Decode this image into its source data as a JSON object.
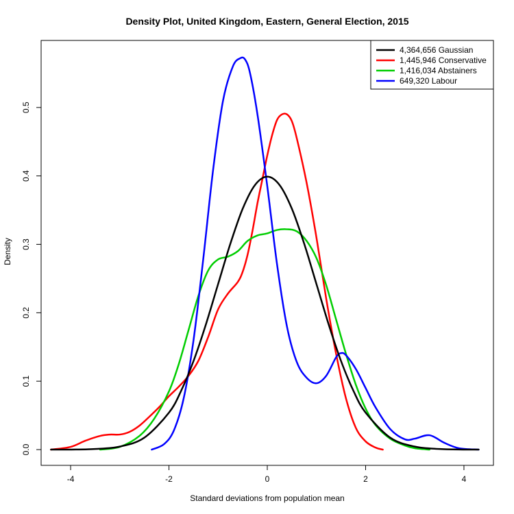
{
  "chart_data": {
    "type": "line",
    "title": "Density Plot, United Kingdom, Eastern, General Election, 2015",
    "xlabel": "Standard deviations from population mean",
    "ylabel": "Density",
    "xlim": [
      -4.6,
      4.6
    ],
    "ylim": [
      -0.023,
      0.598
    ],
    "xticks": [
      -4,
      -2,
      0,
      2,
      4
    ],
    "xtick_labels": [
      "-4",
      "-2",
      "0",
      "2",
      "4"
    ],
    "yticks": [
      0.0,
      0.1,
      0.2,
      0.3,
      0.4,
      0.5
    ],
    "ytick_labels": [
      "0.0",
      "0.1",
      "0.2",
      "0.3",
      "0.4",
      "0.5"
    ],
    "grid": false,
    "legend_position": "top-right",
    "series": [
      {
        "name": "4,364,656 Gaussian",
        "color": "#000000",
        "x": [
          -4.4,
          -4.0,
          -3.5,
          -3.0,
          -2.5,
          -2.0,
          -1.75,
          -1.5,
          -1.25,
          -1.0,
          -0.75,
          -0.5,
          -0.25,
          0.0,
          0.25,
          0.5,
          0.75,
          1.0,
          1.25,
          1.5,
          1.75,
          2.0,
          2.5,
          3.0,
          3.5,
          4.0,
          4.3
        ],
        "y": [
          0.0,
          0.0001,
          0.0009,
          0.0044,
          0.0175,
          0.054,
          0.0863,
          0.1295,
          0.1826,
          0.242,
          0.3011,
          0.3521,
          0.3867,
          0.3989,
          0.3867,
          0.3521,
          0.3011,
          0.242,
          0.1826,
          0.1295,
          0.0863,
          0.054,
          0.0175,
          0.0044,
          0.0009,
          0.0001,
          0.0
        ]
      },
      {
        "name": "1,445,946 Conservative",
        "color": "#ff0000",
        "x": [
          -4.4,
          -4.0,
          -3.7,
          -3.4,
          -3.2,
          -3.0,
          -2.8,
          -2.6,
          -2.4,
          -2.2,
          -2.0,
          -1.8,
          -1.6,
          -1.4,
          -1.2,
          -1.0,
          -0.8,
          -0.6,
          -0.5,
          -0.4,
          -0.3,
          -0.2,
          -0.1,
          0.0,
          0.1,
          0.2,
          0.3,
          0.4,
          0.5,
          0.6,
          0.8,
          1.0,
          1.2,
          1.4,
          1.6,
          1.8,
          2.0,
          2.2,
          2.35
        ],
        "y": [
          0.0,
          0.004,
          0.013,
          0.02,
          0.022,
          0.022,
          0.026,
          0.035,
          0.048,
          0.062,
          0.078,
          0.092,
          0.108,
          0.13,
          0.165,
          0.205,
          0.228,
          0.245,
          0.26,
          0.285,
          0.32,
          0.36,
          0.395,
          0.43,
          0.46,
          0.482,
          0.49,
          0.49,
          0.48,
          0.455,
          0.39,
          0.31,
          0.22,
          0.14,
          0.075,
          0.032,
          0.012,
          0.003,
          0.0
        ]
      },
      {
        "name": "1,416,034 Abstainers",
        "color": "#00cd00",
        "x": [
          -3.4,
          -3.0,
          -2.6,
          -2.3,
          -2.0,
          -1.8,
          -1.6,
          -1.4,
          -1.2,
          -1.0,
          -0.8,
          -0.6,
          -0.4,
          -0.2,
          0.0,
          0.2,
          0.4,
          0.6,
          0.8,
          1.0,
          1.2,
          1.4,
          1.6,
          1.8,
          2.0,
          2.2,
          2.5,
          2.8,
          3.0,
          3.3
        ],
        "y": [
          0.0,
          0.004,
          0.02,
          0.045,
          0.085,
          0.125,
          0.175,
          0.225,
          0.262,
          0.278,
          0.282,
          0.29,
          0.305,
          0.313,
          0.316,
          0.321,
          0.322,
          0.319,
          0.305,
          0.28,
          0.24,
          0.19,
          0.14,
          0.095,
          0.06,
          0.036,
          0.016,
          0.006,
          0.002,
          0.0
        ]
      },
      {
        "name": "649,320 Labour",
        "color": "#0000ff",
        "x": [
          -2.35,
          -2.1,
          -1.9,
          -1.7,
          -1.5,
          -1.3,
          -1.1,
          -0.9,
          -0.7,
          -0.55,
          -0.45,
          -0.35,
          -0.2,
          0.0,
          0.2,
          0.4,
          0.6,
          0.8,
          1.0,
          1.2,
          1.4,
          1.5,
          1.6,
          1.8,
          2.0,
          2.2,
          2.5,
          2.8,
          3.0,
          3.3,
          3.6,
          3.9,
          4.3
        ],
        "y": [
          0.0,
          0.008,
          0.028,
          0.075,
          0.16,
          0.28,
          0.41,
          0.51,
          0.56,
          0.572,
          0.57,
          0.55,
          0.49,
          0.385,
          0.27,
          0.18,
          0.128,
          0.105,
          0.097,
          0.108,
          0.135,
          0.141,
          0.138,
          0.118,
          0.09,
          0.062,
          0.03,
          0.015,
          0.016,
          0.021,
          0.01,
          0.002,
          0.0
        ]
      }
    ]
  }
}
